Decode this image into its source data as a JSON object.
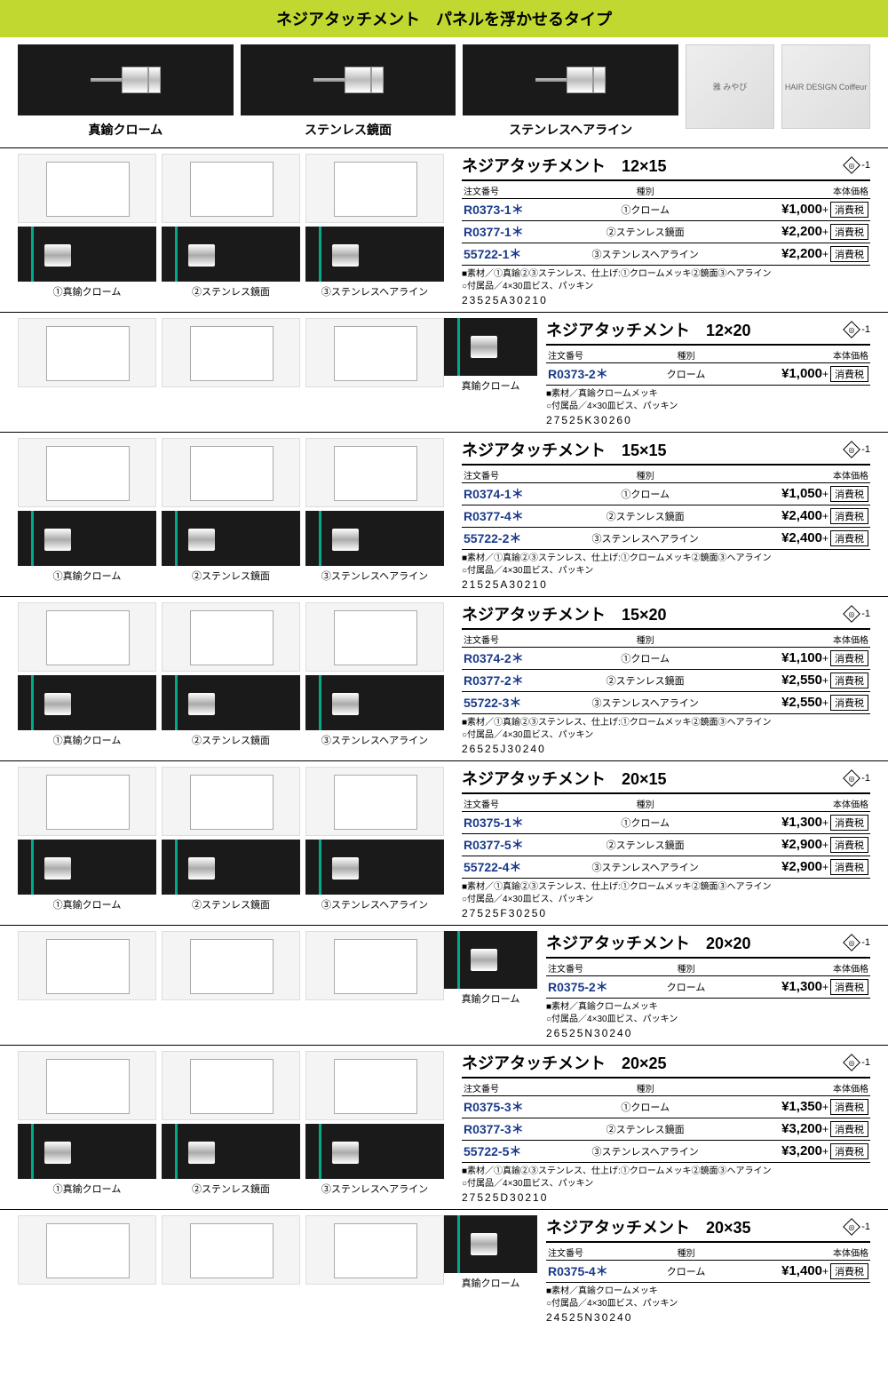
{
  "page_title": "ネジアタッチメント　パネルを浮かせるタイプ",
  "hero": {
    "items": [
      {
        "label": "真鍮クローム"
      },
      {
        "label": "ステンレス鏡面"
      },
      {
        "label": "ステンレスヘアライン"
      }
    ],
    "extras": [
      "雅 みやび",
      "HAIR DESIGN Coiffeur"
    ]
  },
  "table_headers": {
    "order": "注文番号",
    "variant": "種別",
    "price": "本体価格"
  },
  "tax_label": "消費税",
  "badge": "◎",
  "page_ref": "-1",
  "sample_labels": [
    "①真鍮クローム",
    "②ステンレス鏡面",
    "③ステンレスヘアライン"
  ],
  "single_sample_label": "真鍮クローム",
  "products": [
    {
      "layout": "full",
      "title": "ネジアタッチメント　12×15",
      "rows": [
        {
          "order": "R0373-1＊",
          "variant": "①クローム",
          "price": "¥1,000"
        },
        {
          "order": "R0377-1＊",
          "variant": "②ステンレス鏡面",
          "price": "¥2,200"
        },
        {
          "order": "55722-1＊",
          "variant": "③ステンレスヘアライン",
          "price": "¥2,200"
        }
      ],
      "notes": [
        "■素材／①真鍮②③ステンレス、仕上げ:①クロームメッキ②鏡面③ヘアライン",
        "○付属品／4×30皿ビス、パッキン"
      ],
      "code": "23525A30210"
    },
    {
      "layout": "single",
      "title": "ネジアタッチメント　12×20",
      "rows": [
        {
          "order": "R0373-2＊",
          "variant": "クローム",
          "price": "¥1,000"
        }
      ],
      "notes": [
        "■素材／真鍮クロームメッキ",
        "○付属品／4×30皿ビス、パッキン"
      ],
      "code": "27525K30260"
    },
    {
      "layout": "full",
      "title": "ネジアタッチメント　15×15",
      "rows": [
        {
          "order": "R0374-1＊",
          "variant": "①クローム",
          "price": "¥1,050"
        },
        {
          "order": "R0377-4＊",
          "variant": "②ステンレス鏡面",
          "price": "¥2,400"
        },
        {
          "order": "55722-2＊",
          "variant": "③ステンレスヘアライン",
          "price": "¥2,400"
        }
      ],
      "notes": [
        "■素材／①真鍮②③ステンレス、仕上げ:①クロームメッキ②鏡面③ヘアライン",
        "○付属品／4×30皿ビス、パッキン"
      ],
      "code": "21525A30210"
    },
    {
      "layout": "full",
      "title": "ネジアタッチメント　15×20",
      "rows": [
        {
          "order": "R0374-2＊",
          "variant": "①クローム",
          "price": "¥1,100"
        },
        {
          "order": "R0377-2＊",
          "variant": "②ステンレス鏡面",
          "price": "¥2,550"
        },
        {
          "order": "55722-3＊",
          "variant": "③ステンレスヘアライン",
          "price": "¥2,550"
        }
      ],
      "notes": [
        "■素材／①真鍮②③ステンレス、仕上げ:①クロームメッキ②鏡面③ヘアライン",
        "○付属品／4×30皿ビス、パッキン"
      ],
      "code": "26525J30240"
    },
    {
      "layout": "full",
      "title": "ネジアタッチメント　20×15",
      "rows": [
        {
          "order": "R0375-1＊",
          "variant": "①クローム",
          "price": "¥1,300"
        },
        {
          "order": "R0377-5＊",
          "variant": "②ステンレス鏡面",
          "price": "¥2,900"
        },
        {
          "order": "55722-4＊",
          "variant": "③ステンレスヘアライン",
          "price": "¥2,900"
        }
      ],
      "notes": [
        "■素材／①真鍮②③ステンレス、仕上げ:①クロームメッキ②鏡面③ヘアライン",
        "○付属品／4×30皿ビス、パッキン"
      ],
      "code": "27525F30250"
    },
    {
      "layout": "single",
      "title": "ネジアタッチメント　20×20",
      "rows": [
        {
          "order": "R0375-2＊",
          "variant": "クローム",
          "price": "¥1,300"
        }
      ],
      "notes": [
        "■素材／真鍮クロームメッキ",
        "○付属品／4×30皿ビス、パッキン"
      ],
      "code": "26525N30240"
    },
    {
      "layout": "full",
      "title": "ネジアタッチメント　20×25",
      "rows": [
        {
          "order": "R0375-3＊",
          "variant": "①クローム",
          "price": "¥1,350"
        },
        {
          "order": "R0377-3＊",
          "variant": "②ステンレス鏡面",
          "price": "¥3,200"
        },
        {
          "order": "55722-5＊",
          "variant": "③ステンレスヘアライン",
          "price": "¥3,200"
        }
      ],
      "notes": [
        "■素材／①真鍮②③ステンレス、仕上げ:①クロームメッキ②鏡面③ヘアライン",
        "○付属品／4×30皿ビス、パッキン"
      ],
      "code": "27525D30210"
    },
    {
      "layout": "single",
      "title": "ネジアタッチメント　20×35",
      "rows": [
        {
          "order": "R0375-4＊",
          "variant": "クローム",
          "price": "¥1,400"
        }
      ],
      "notes": [
        "■素材／真鍮クロームメッキ",
        "○付属品／4×30皿ビス、パッキン"
      ],
      "code": "24525N30240"
    }
  ]
}
